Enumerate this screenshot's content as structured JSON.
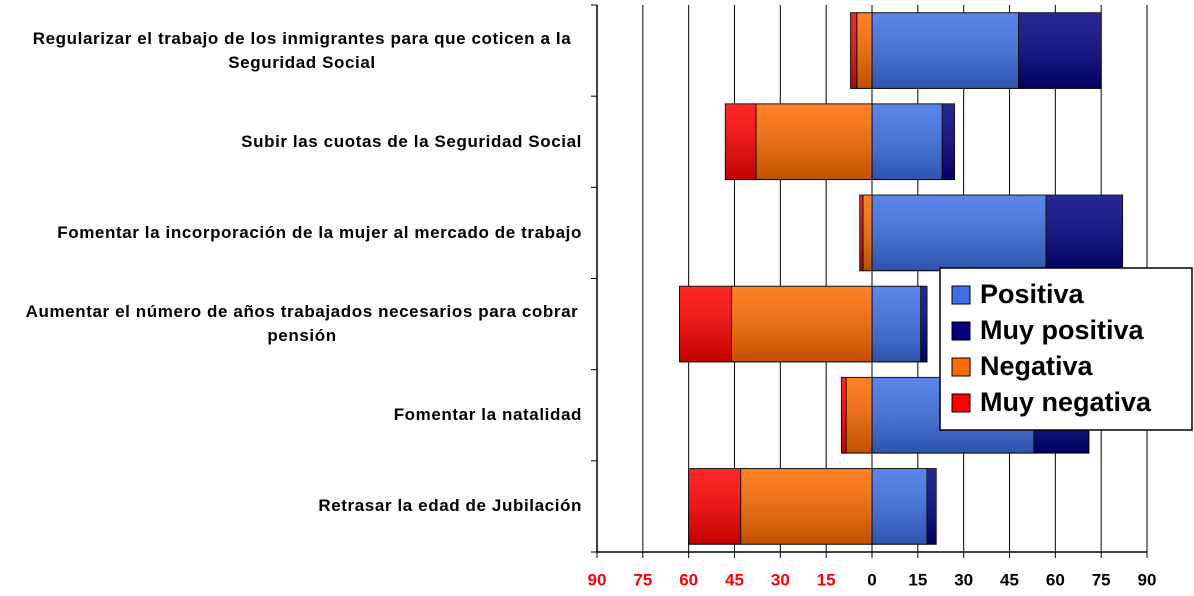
{
  "chart_data": {
    "type": "diverging-bar",
    "categories": [
      "Regularizar el trabajo de los inmigrantes para que coticen a la Seguridad Social",
      "Subir las cuotas de la Seguridad Social",
      "Fomentar la incorporación de la mujer al mercado de trabajo",
      "Aumentar el número de años trabajados necesarios para cobrar pensión",
      "Fomentar la natalidad",
      "Retrasar la edad de Jubilación"
    ],
    "series": [
      {
        "name": "Positiva",
        "color": "#3d6fe6",
        "values": [
          48,
          23,
          57,
          16,
          53,
          18
        ]
      },
      {
        "name": "Muy positiva",
        "color": "#000080",
        "values": [
          27,
          4,
          25,
          2,
          18,
          3
        ]
      },
      {
        "name": "Negativa",
        "color": "#ff6a00",
        "values": [
          -5,
          -38,
          -3,
          -46,
          -8.5,
          -43
        ]
      },
      {
        "name": "Muy negativa",
        "color": "#ff0000",
        "values": [
          -2,
          -10,
          -1,
          -17,
          -1.5,
          -17
        ]
      }
    ],
    "xlim": [
      -90,
      90
    ],
    "xticks": [
      {
        "value": -90,
        "label": "90"
      },
      {
        "value": -75,
        "label": "75"
      },
      {
        "value": -60,
        "label": "60"
      },
      {
        "value": -45,
        "label": "45"
      },
      {
        "value": -30,
        "label": "30"
      },
      {
        "value": -15,
        "label": "15"
      },
      0,
      15,
      30,
      45,
      60,
      75,
      90
    ],
    "negative_tick_color": "#ff0000",
    "grid": true,
    "legend": "right"
  }
}
